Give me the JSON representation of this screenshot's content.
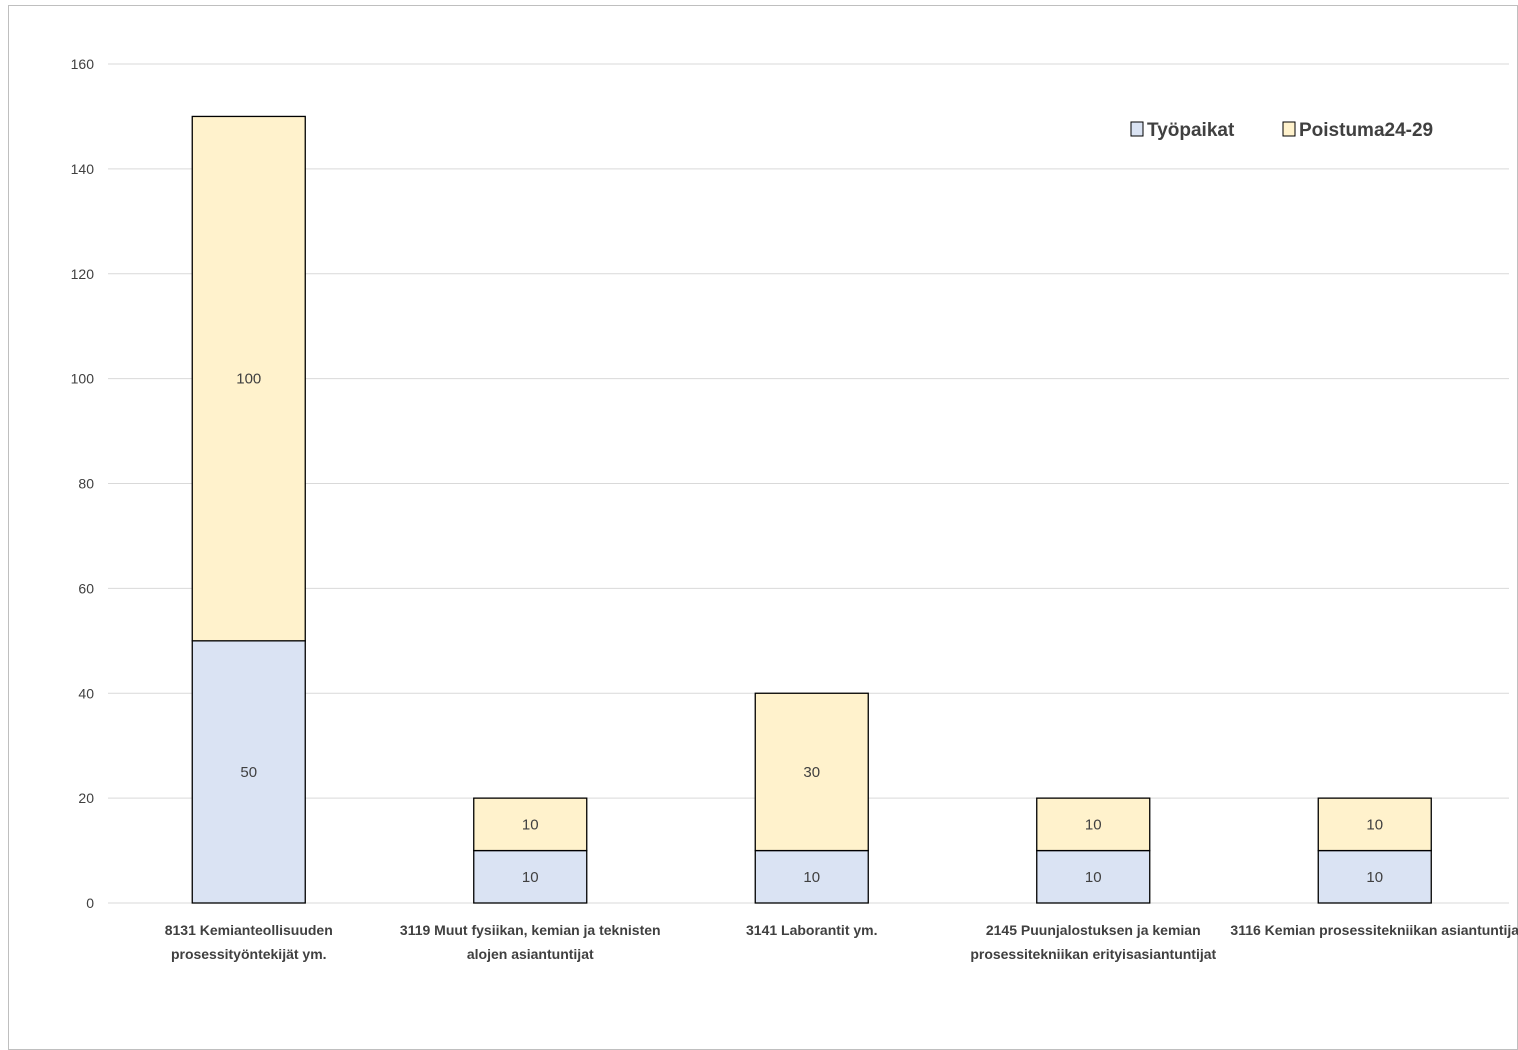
{
  "chart_data": {
    "type": "bar",
    "stacked": true,
    "categories": [
      [
        "8131 Kemianteollisuuden",
        "prosessityöntekijät ym."
      ],
      [
        "3119 Muut fysiikan, kemian ja teknisten",
        "alojen asiantuntijat"
      ],
      [
        "3141 Laborantit ym."
      ],
      [
        "2145 Puunjalostuksen ja kemian",
        "prosessitekniikan erityisasiantuntijat"
      ],
      [
        "3116 Kemian prosessitekniikan asiantuntija"
      ]
    ],
    "series": [
      {
        "name": "Työpaikat",
        "values": [
          50,
          10,
          10,
          10,
          10
        ],
        "color": "#dae3f3"
      },
      {
        "name": "Poistuma24-29",
        "values": [
          100,
          10,
          30,
          10,
          10
        ],
        "color": "#fff2cc"
      }
    ],
    "ylim": [
      0,
      160
    ],
    "yticks": [
      "0",
      "20",
      "40",
      "60",
      "80",
      "100",
      "120",
      "140",
      "160"
    ],
    "ytick_values": [
      0,
      20,
      40,
      60,
      80,
      100,
      120,
      140,
      160
    ],
    "grid": true,
    "legend_position": "top-right",
    "colors": {
      "gridline": "#d9d9d9",
      "bar_outline": "#000000",
      "text": "#404040"
    }
  }
}
